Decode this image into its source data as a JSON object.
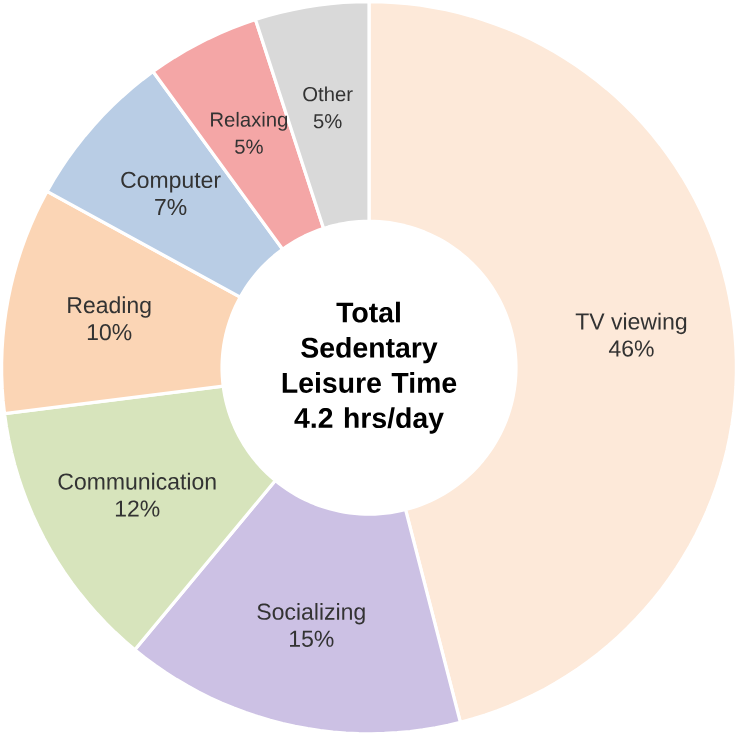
{
  "chart_data": {
    "type": "donut",
    "title": "Total Sedentary Leisure Time 4.2 hrs/day",
    "categories": [
      "TV viewing",
      "Socializing",
      "Communication",
      "Reading",
      "Computer",
      "Relaxing",
      "Other"
    ],
    "values": [
      46,
      15,
      12,
      10,
      7,
      5,
      5
    ],
    "value_labels": [
      "46%",
      "15%",
      "12%",
      "10%",
      "7%",
      "5%",
      "5%"
    ],
    "colors": [
      "#fde9d9",
      "#ccc1e4",
      "#d7e4bc",
      "#fbd5b5",
      "#b9cde5",
      "#f4a6a6",
      "#d9d9d9"
    ]
  }
}
